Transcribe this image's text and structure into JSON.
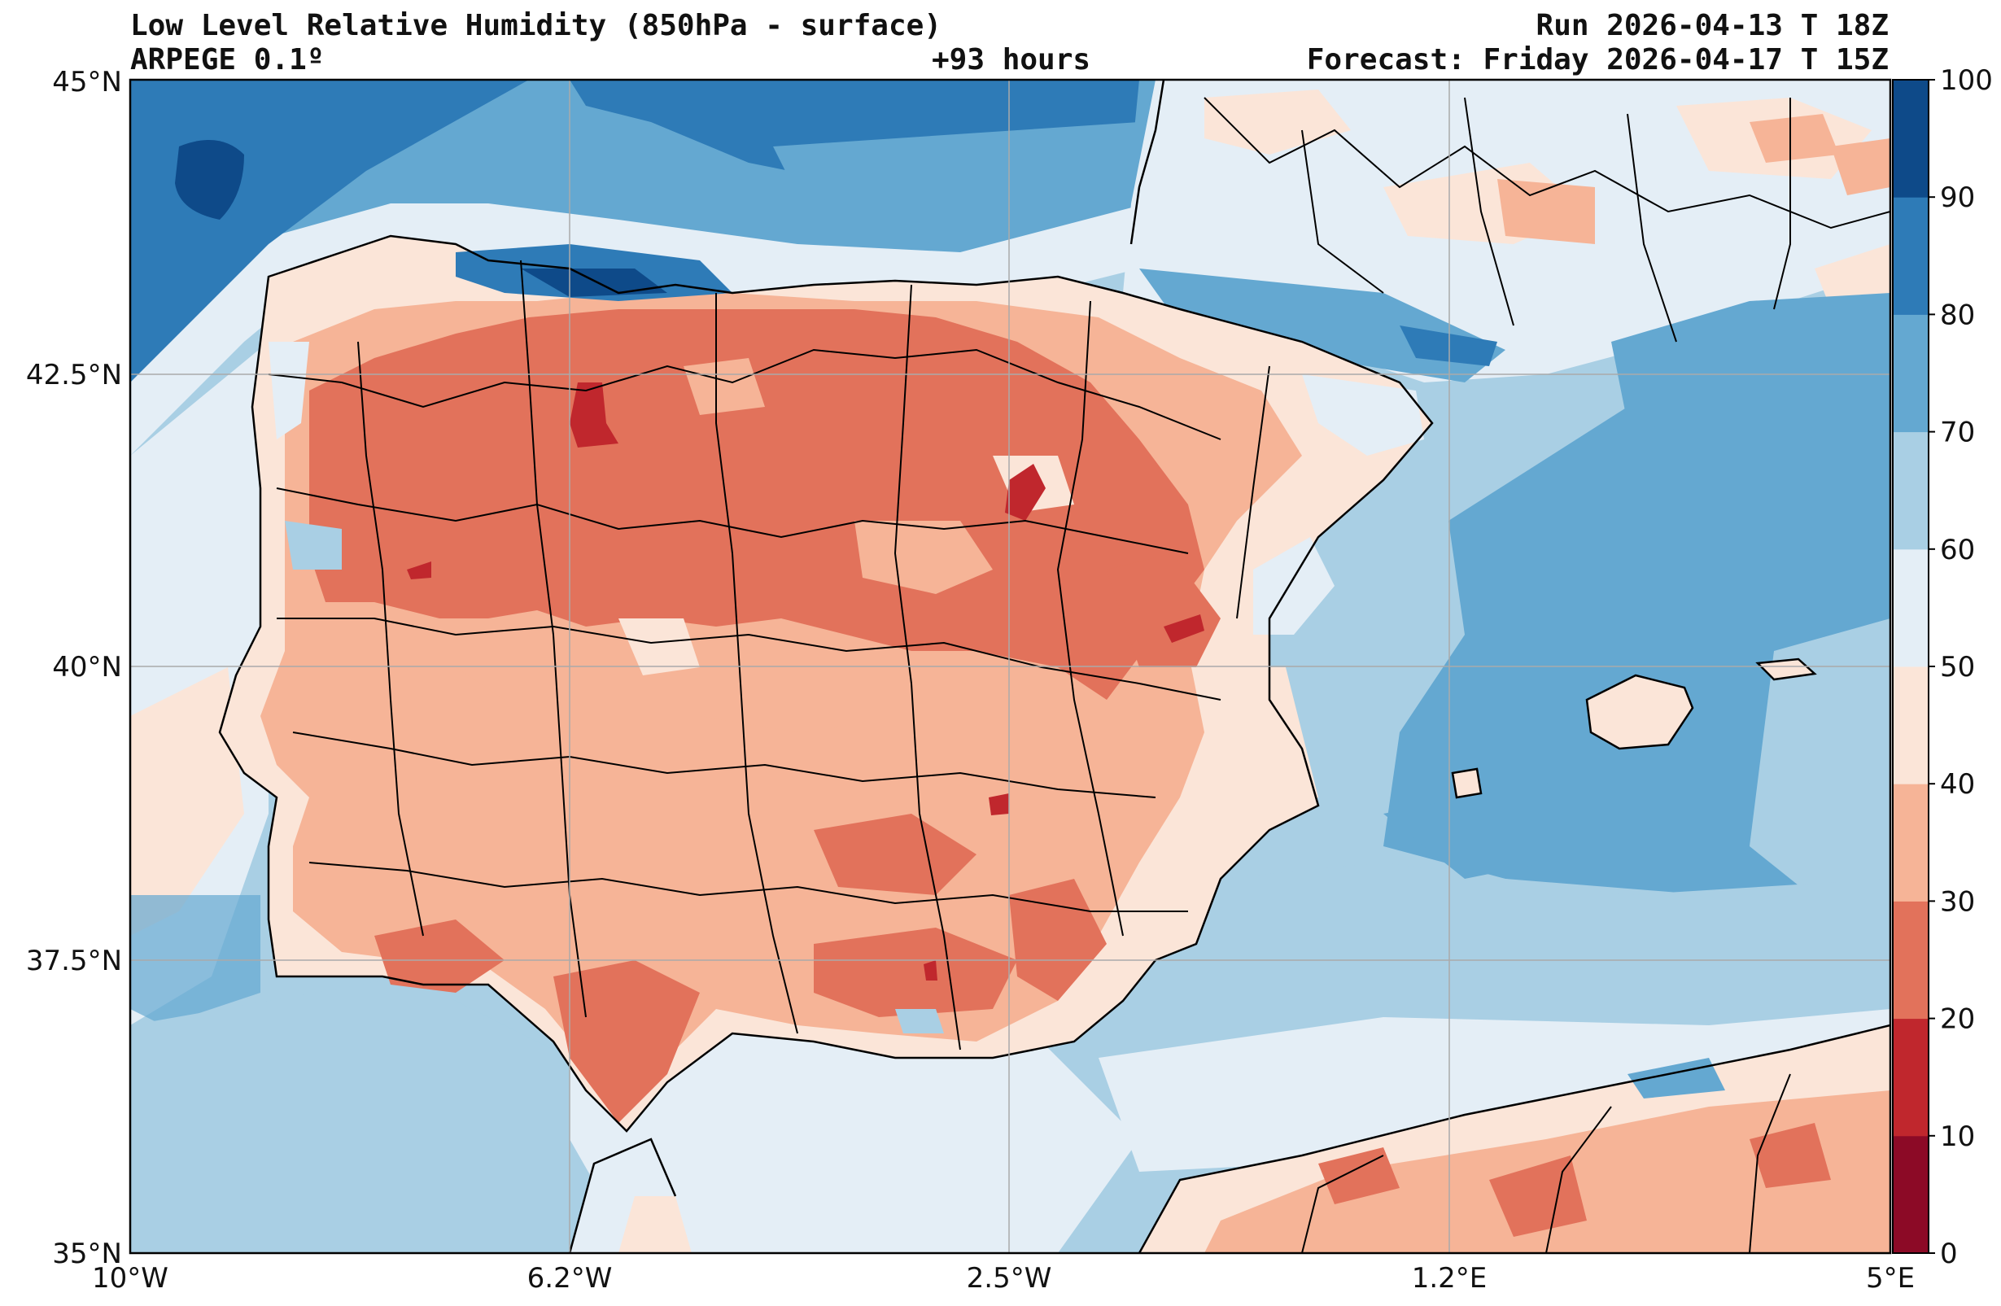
{
  "header": {
    "title": "Low Level Relative Humidity (850hPa - surface)",
    "model": "ARPEGE 0.1º",
    "lead_time": "+93 hours",
    "run": "Run 2026-04-13 T 18Z",
    "forecast": "Forecast: Friday 2026-04-17 T 15Z"
  },
  "map": {
    "lat_range": [
      35,
      45
    ],
    "lon_range": [
      -10,
      5
    ],
    "lat_ticks": [
      {
        "value": 45,
        "label": "45°N"
      },
      {
        "value": 42.5,
        "label": "42.5°N"
      },
      {
        "value": 40,
        "label": "40°N"
      },
      {
        "value": 37.5,
        "label": "37.5°N"
      },
      {
        "value": 35,
        "label": "35°N"
      }
    ],
    "lon_ticks": [
      {
        "value": -10,
        "label": "10°W"
      },
      {
        "value": -6.25,
        "label": "6.2°W"
      },
      {
        "value": -2.5,
        "label": "2.5°W"
      },
      {
        "value": 1.25,
        "label": "1.2°E"
      },
      {
        "value": 5,
        "label": "5°E"
      }
    ]
  },
  "colorbar": {
    "levels": [
      0,
      10,
      20,
      30,
      40,
      50,
      60,
      70,
      80,
      90,
      100
    ],
    "colors": [
      "#8c0a26",
      "#c0272d",
      "#e2725b",
      "#f6b497",
      "#fbe5d8",
      "#e4eef6",
      "#a9cfe4",
      "#64a8d1",
      "#2e7bb7",
      "#0e4a89"
    ]
  },
  "colors": {
    "sea_default": "#a9cfe4",
    "land_dry": "#f6b497"
  }
}
